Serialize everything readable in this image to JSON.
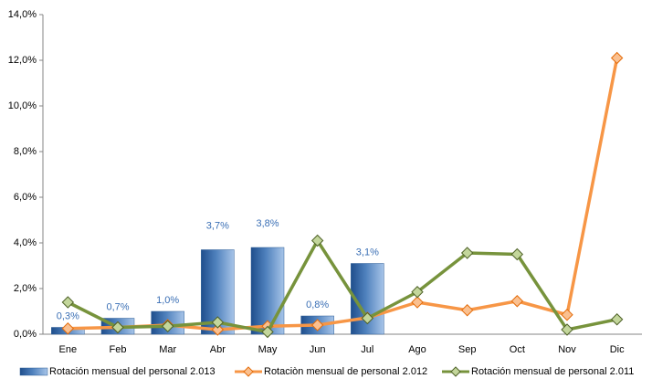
{
  "chart_data": {
    "type": "bar-line",
    "categories": [
      "Ene",
      "Feb",
      "Mar",
      "Abr",
      "May",
      "Jun",
      "Jul",
      "Ago",
      "Sep",
      "Oct",
      "Nov",
      "Dic"
    ],
    "series": [
      {
        "name": "Rotación mensual del personal 2.013",
        "type": "bar",
        "color": "#4f81bd",
        "values": [
          0.3,
          0.7,
          1.0,
          3.7,
          3.8,
          0.8,
          3.1,
          null,
          null,
          null,
          null,
          null
        ],
        "value_labels": [
          "0,3%",
          "0,7%",
          "1,0%",
          "3,7%",
          "3,8%",
          "0,8%",
          "3,1%",
          null,
          null,
          null,
          null,
          null
        ]
      },
      {
        "name": "Rotaciòn mensual de personal 2.012",
        "type": "line",
        "color": "#f79646",
        "values": [
          0.25,
          0.3,
          0.4,
          0.2,
          0.35,
          0.4,
          0.72,
          1.4,
          1.05,
          1.45,
          0.85,
          12.1
        ]
      },
      {
        "name": "Rotación mensual de personal 2.011",
        "type": "line",
        "color": "#77933c",
        "values": [
          1.4,
          0.3,
          0.35,
          0.52,
          0.1,
          4.1,
          0.7,
          1.85,
          3.56,
          3.5,
          0.2,
          0.65
        ]
      }
    ],
    "ylim": [
      0,
      14
    ],
    "yticks": [
      {
        "value": 0,
        "label": "0,0%"
      },
      {
        "value": 2,
        "label": "2,0%"
      },
      {
        "value": 4,
        "label": "4,0%"
      },
      {
        "value": 6,
        "label": "6,0%"
      },
      {
        "value": 8,
        "label": "8,0%"
      },
      {
        "value": 10,
        "label": "10,0%"
      },
      {
        "value": 12,
        "label": "12,0%"
      },
      {
        "value": 14,
        "label": "14,0%"
      }
    ],
    "grid": false,
    "legend": "bottom"
  }
}
